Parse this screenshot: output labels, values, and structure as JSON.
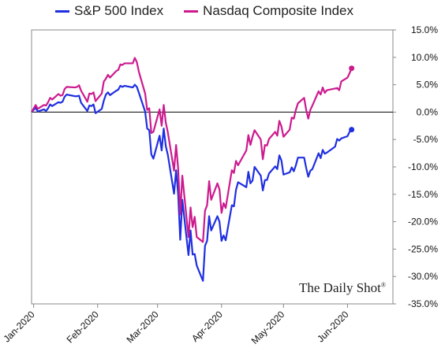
{
  "chart_data": {
    "type": "line",
    "title": "",
    "xlabel": "",
    "ylabel": "",
    "ylim": [
      -35,
      15
    ],
    "y_tick_labels": [
      "15.0%",
      "10.0%",
      "5.0%",
      "0.0%",
      "-5.0%",
      "-10.0%",
      "-15.0%",
      "-20.0%",
      "-25.0%",
      "-30.0%",
      "-35.0%"
    ],
    "y_ticks": [
      15,
      10,
      5,
      0,
      -5,
      -10,
      -15,
      -20,
      -25,
      -30,
      -35
    ],
    "x_tick_labels": [
      "Jan-2020",
      "Feb-2020",
      "Mar-2020",
      "Apr-2020",
      "May-2020",
      "Jun-2020"
    ],
    "x_tick_dates": [
      "2020-01-01",
      "2020-02-01",
      "2020-03-01",
      "2020-04-01",
      "2020-05-01",
      "2020-06-01"
    ],
    "grid": false,
    "legend_position": "top",
    "series": [
      {
        "name": "S&P 500 Index",
        "color": "#1f2fe0",
        "end_marker": true,
        "points": [
          [
            "2019-12-31",
            0.0
          ],
          [
            "2020-01-02",
            0.8
          ],
          [
            "2020-01-03",
            0.1
          ],
          [
            "2020-01-06",
            0.5
          ],
          [
            "2020-01-07",
            0.2
          ],
          [
            "2020-01-08",
            0.7
          ],
          [
            "2020-01-09",
            1.4
          ],
          [
            "2020-01-10",
            1.1
          ],
          [
            "2020-01-13",
            1.8
          ],
          [
            "2020-01-14",
            1.7
          ],
          [
            "2020-01-15",
            1.9
          ],
          [
            "2020-01-16",
            2.8
          ],
          [
            "2020-01-17",
            3.2
          ],
          [
            "2020-01-21",
            2.9
          ],
          [
            "2020-01-22",
            2.9
          ],
          [
            "2020-01-23",
            3.0
          ],
          [
            "2020-01-24",
            1.7
          ],
          [
            "2020-01-27",
            0.2
          ],
          [
            "2020-01-28",
            1.2
          ],
          [
            "2020-01-29",
            1.1
          ],
          [
            "2020-01-30",
            1.4
          ],
          [
            "2020-01-31",
            -0.2
          ],
          [
            "2020-02-03",
            0.6
          ],
          [
            "2020-02-04",
            2.1
          ],
          [
            "2020-02-05",
            3.2
          ],
          [
            "2020-02-06",
            3.6
          ],
          [
            "2020-02-07",
            3.1
          ],
          [
            "2020-02-10",
            3.9
          ],
          [
            "2020-02-11",
            4.1
          ],
          [
            "2020-02-12",
            4.8
          ],
          [
            "2020-02-13",
            4.6
          ],
          [
            "2020-02-14",
            4.8
          ],
          [
            "2020-02-18",
            4.5
          ],
          [
            "2020-02-19",
            5.0
          ],
          [
            "2020-02-20",
            4.6
          ],
          [
            "2020-02-21",
            3.5
          ],
          [
            "2020-02-24",
            0.1
          ],
          [
            "2020-02-25",
            -3.0
          ],
          [
            "2020-02-26",
            -3.3
          ],
          [
            "2020-02-27",
            -7.7
          ],
          [
            "2020-02-28",
            -8.5
          ],
          [
            "2020-03-02",
            -4.3
          ],
          [
            "2020-03-03",
            -7.0
          ],
          [
            "2020-03-04",
            -3.0
          ],
          [
            "2020-03-05",
            -6.2
          ],
          [
            "2020-03-06",
            -7.8
          ],
          [
            "2020-03-09",
            -14.9
          ],
          [
            "2020-03-10",
            -10.6
          ],
          [
            "2020-03-11",
            -15.0
          ],
          [
            "2020-03-12",
            -23.3
          ],
          [
            "2020-03-13",
            -16.0
          ],
          [
            "2020-03-16",
            -26.1
          ],
          [
            "2020-03-17",
            -21.6
          ],
          [
            "2020-03-18",
            -26.0
          ],
          [
            "2020-03-19",
            -25.9
          ],
          [
            "2020-03-20",
            -28.0
          ],
          [
            "2020-03-23",
            -30.8
          ],
          [
            "2020-03-24",
            -24.4
          ],
          [
            "2020-03-25",
            -23.5
          ],
          [
            "2020-03-26",
            -19.0
          ],
          [
            "2020-03-27",
            -21.6
          ],
          [
            "2020-03-30",
            -19.0
          ],
          [
            "2020-03-31",
            -20.0
          ],
          [
            "2020-04-01",
            -23.5
          ],
          [
            "2020-04-02",
            -22.5
          ],
          [
            "2020-04-03",
            -23.4
          ],
          [
            "2020-04-06",
            -17.0
          ],
          [
            "2020-04-07",
            -17.2
          ],
          [
            "2020-04-08",
            -14.2
          ],
          [
            "2020-04-09",
            -12.8
          ],
          [
            "2020-04-13",
            -13.7
          ],
          [
            "2020-04-14",
            -10.9
          ],
          [
            "2020-04-15",
            -13.0
          ],
          [
            "2020-04-16",
            -12.5
          ],
          [
            "2020-04-17",
            -10.0
          ],
          [
            "2020-04-20",
            -11.6
          ],
          [
            "2020-04-21",
            -14.3
          ],
          [
            "2020-04-22",
            -12.4
          ],
          [
            "2020-04-23",
            -12.4
          ],
          [
            "2020-04-24",
            -11.2
          ],
          [
            "2020-04-27",
            -9.9
          ],
          [
            "2020-04-28",
            -10.4
          ],
          [
            "2020-04-29",
            -7.9
          ],
          [
            "2020-04-30",
            -8.8
          ],
          [
            "2020-05-01",
            -11.4
          ],
          [
            "2020-05-04",
            -11.0
          ],
          [
            "2020-05-05",
            -10.1
          ],
          [
            "2020-05-06",
            -10.8
          ],
          [
            "2020-05-07",
            -9.7
          ],
          [
            "2020-05-08",
            -8.3
          ],
          [
            "2020-05-11",
            -8.3
          ],
          [
            "2020-05-12",
            -10.2
          ],
          [
            "2020-05-13",
            -11.8
          ],
          [
            "2020-05-14",
            -10.7
          ],
          [
            "2020-05-15",
            -10.4
          ],
          [
            "2020-05-18",
            -7.5
          ],
          [
            "2020-05-19",
            -8.4
          ],
          [
            "2020-05-20",
            -6.9
          ],
          [
            "2020-05-21",
            -7.6
          ],
          [
            "2020-05-22",
            -7.4
          ],
          [
            "2020-05-26",
            -6.3
          ],
          [
            "2020-05-27",
            -4.9
          ],
          [
            "2020-05-28",
            -5.2
          ],
          [
            "2020-05-29",
            -4.8
          ],
          [
            "2020-06-01",
            -4.4
          ],
          [
            "2020-06-02",
            -3.6
          ],
          [
            "2020-06-03",
            -3.2
          ]
        ]
      },
      {
        "name": "Nasdaq Composite Index",
        "color": "#cc1a8e",
        "end_marker": true,
        "points": [
          [
            "2019-12-31",
            0.0
          ],
          [
            "2020-01-02",
            1.3
          ],
          [
            "2020-01-03",
            0.6
          ],
          [
            "2020-01-06",
            1.3
          ],
          [
            "2020-01-07",
            1.2
          ],
          [
            "2020-01-08",
            1.8
          ],
          [
            "2020-01-09",
            2.6
          ],
          [
            "2020-01-10",
            2.3
          ],
          [
            "2020-01-13",
            3.3
          ],
          [
            "2020-01-14",
            3.0
          ],
          [
            "2020-01-15",
            3.1
          ],
          [
            "2020-01-16",
            4.2
          ],
          [
            "2020-01-17",
            4.6
          ],
          [
            "2020-01-21",
            4.5
          ],
          [
            "2020-01-22",
            4.6
          ],
          [
            "2020-01-23",
            4.9
          ],
          [
            "2020-01-24",
            3.9
          ],
          [
            "2020-01-27",
            1.9
          ],
          [
            "2020-01-28",
            3.4
          ],
          [
            "2020-01-29",
            3.3
          ],
          [
            "2020-01-30",
            3.6
          ],
          [
            "2020-01-31",
            2.0
          ],
          [
            "2020-02-03",
            3.4
          ],
          [
            "2020-02-04",
            5.6
          ],
          [
            "2020-02-05",
            6.1
          ],
          [
            "2020-02-06",
            6.8
          ],
          [
            "2020-02-07",
            6.3
          ],
          [
            "2020-02-10",
            7.5
          ],
          [
            "2020-02-11",
            7.7
          ],
          [
            "2020-02-12",
            8.7
          ],
          [
            "2020-02-13",
            8.6
          ],
          [
            "2020-02-14",
            8.9
          ],
          [
            "2020-02-18",
            8.9
          ],
          [
            "2020-02-19",
            9.9
          ],
          [
            "2020-02-20",
            9.1
          ],
          [
            "2020-02-21",
            7.3
          ],
          [
            "2020-02-24",
            3.4
          ],
          [
            "2020-02-25",
            0.4
          ],
          [
            "2020-02-26",
            0.7
          ],
          [
            "2020-02-27",
            -3.8
          ],
          [
            "2020-02-28",
            -3.6
          ],
          [
            "2020-03-02",
            0.5
          ],
          [
            "2020-03-03",
            -2.5
          ],
          [
            "2020-03-04",
            1.3
          ],
          [
            "2020-03-05",
            -1.9
          ],
          [
            "2020-03-06",
            -3.7
          ],
          [
            "2020-03-09",
            -10.7
          ],
          [
            "2020-03-10",
            -6.0
          ],
          [
            "2020-03-11",
            -10.4
          ],
          [
            "2020-03-12",
            -18.7
          ],
          [
            "2020-03-13",
            -11.6
          ],
          [
            "2020-03-16",
            -22.8
          ],
          [
            "2020-03-17",
            -17.4
          ],
          [
            "2020-03-18",
            -21.0
          ],
          [
            "2020-03-19",
            -19.1
          ],
          [
            "2020-03-20",
            -22.8
          ],
          [
            "2020-03-23",
            -23.7
          ],
          [
            "2020-03-24",
            -18.0
          ],
          [
            "2020-03-25",
            -17.0
          ],
          [
            "2020-03-26",
            -12.6
          ],
          [
            "2020-03-27",
            -16.0
          ],
          [
            "2020-03-30",
            -13.0
          ],
          [
            "2020-03-31",
            -14.1
          ],
          [
            "2020-04-01",
            -18.4
          ],
          [
            "2020-04-02",
            -16.6
          ],
          [
            "2020-04-03",
            -17.5
          ],
          [
            "2020-04-06",
            -10.6
          ],
          [
            "2020-04-07",
            -11.1
          ],
          [
            "2020-04-08",
            -8.9
          ],
          [
            "2020-04-09",
            -9.7
          ],
          [
            "2020-04-13",
            -7.0
          ],
          [
            "2020-04-14",
            -4.2
          ],
          [
            "2020-04-15",
            -6.0
          ],
          [
            "2020-04-16",
            -4.5
          ],
          [
            "2020-04-17",
            -3.3
          ],
          [
            "2020-04-20",
            -5.0
          ],
          [
            "2020-04-21",
            -8.6
          ],
          [
            "2020-04-22",
            -6.0
          ],
          [
            "2020-04-23",
            -6.1
          ],
          [
            "2020-04-24",
            -4.9
          ],
          [
            "2020-04-27",
            -3.6
          ],
          [
            "2020-04-28",
            -4.3
          ],
          [
            "2020-04-29",
            -1.6
          ],
          [
            "2020-04-30",
            -2.6
          ],
          [
            "2020-05-01",
            -4.5
          ],
          [
            "2020-05-04",
            -3.2
          ],
          [
            "2020-05-05",
            -1.0
          ],
          [
            "2020-05-06",
            -1.2
          ],
          [
            "2020-05-07",
            0.4
          ],
          [
            "2020-05-08",
            1.6
          ],
          [
            "2020-05-11",
            2.6
          ],
          [
            "2020-05-12",
            0.4
          ],
          [
            "2020-05-13",
            -1.2
          ],
          [
            "2020-05-14",
            0.4
          ],
          [
            "2020-05-15",
            1.2
          ],
          [
            "2020-05-18",
            3.8
          ],
          [
            "2020-05-19",
            3.2
          ],
          [
            "2020-05-20",
            4.5
          ],
          [
            "2020-05-21",
            3.5
          ],
          [
            "2020-05-22",
            4.0
          ],
          [
            "2020-05-26",
            4.3
          ],
          [
            "2020-05-27",
            4.4
          ],
          [
            "2020-05-28",
            4.0
          ],
          [
            "2020-05-29",
            5.6
          ],
          [
            "2020-06-01",
            6.3
          ],
          [
            "2020-06-02",
            7.1
          ],
          [
            "2020-06-03",
            8.0
          ]
        ]
      }
    ]
  },
  "watermark": {
    "text": "The Daily Shot",
    "mark": "®"
  }
}
